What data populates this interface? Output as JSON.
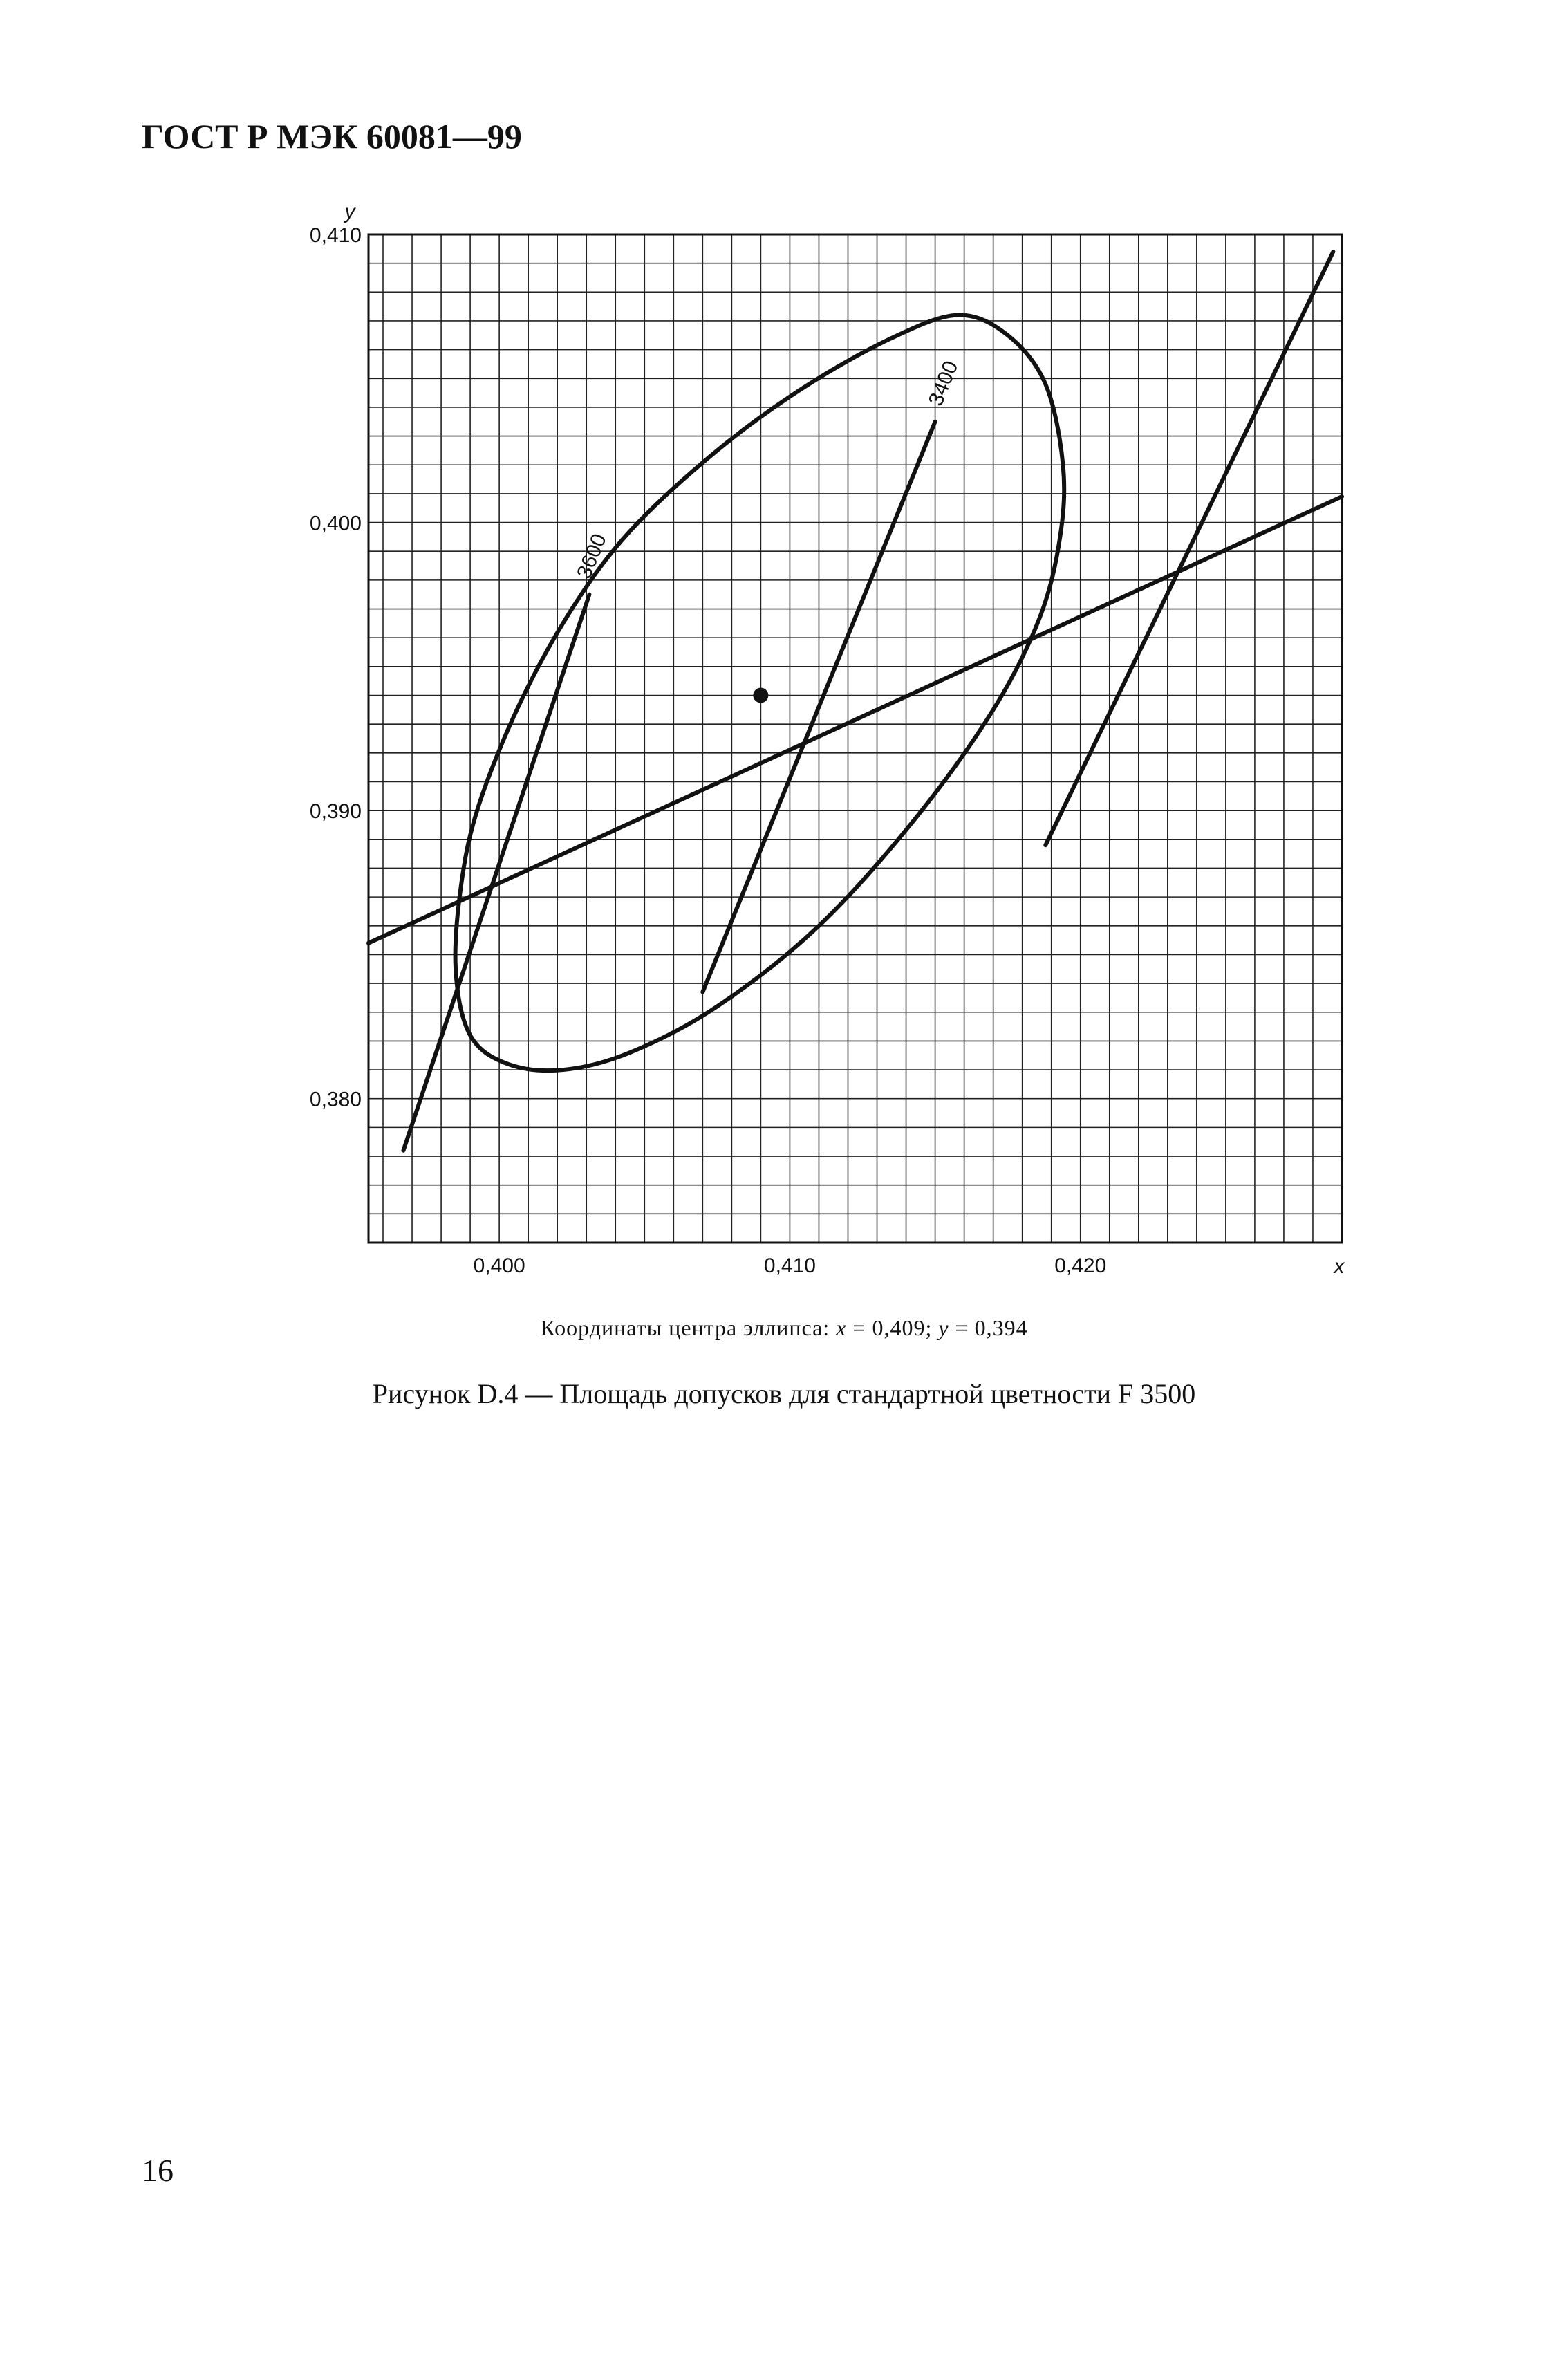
{
  "header": {
    "title": "ГОСТ Р МЭК 60081—99"
  },
  "caption": {
    "coords_label": "Координаты центра эллипса:",
    "x_var": "x",
    "x_value": "= 0,409;",
    "y_var": "y",
    "y_value": "= 0,394",
    "figure_title": "Рисунок D.4 — Площадь допусков для стандартной цветности F 3500"
  },
  "page_number": "16",
  "chart_data": {
    "type": "line",
    "title": "",
    "xlabel": "x",
    "ylabel": "y",
    "xlim": [
      0.3955,
      0.429
    ],
    "ylim": [
      0.375,
      0.41
    ],
    "grid": true,
    "x_ticks": [
      {
        "value": 0.4,
        "label": "0,400"
      },
      {
        "value": 0.41,
        "label": "0,410"
      },
      {
        "value": 0.42,
        "label": "0,420"
      }
    ],
    "y_ticks": [
      {
        "value": 0.41,
        "label": "0,410"
      },
      {
        "value": 0.4,
        "label": "0,400"
      },
      {
        "value": 0.39,
        "label": "0,390"
      },
      {
        "value": 0.38,
        "label": "0,380"
      }
    ],
    "center": {
      "x": 0.409,
      "y": 0.394
    },
    "ellipse": [
      [
        0.4158,
        0.4072
      ],
      [
        0.4175,
        0.4065
      ],
      [
        0.4188,
        0.4048
      ],
      [
        0.4194,
        0.402
      ],
      [
        0.4193,
        0.3995
      ],
      [
        0.4186,
        0.3967
      ],
      [
        0.417,
        0.3935
      ],
      [
        0.4143,
        0.3897
      ],
      [
        0.411,
        0.386
      ],
      [
        0.4075,
        0.3832
      ],
      [
        0.4045,
        0.3816
      ],
      [
        0.4022,
        0.381
      ],
      [
        0.4003,
        0.3812
      ],
      [
        0.399,
        0.3822
      ],
      [
        0.3985,
        0.3845
      ],
      [
        0.3987,
        0.3875
      ],
      [
        0.3993,
        0.3902
      ],
      [
        0.4007,
        0.3937
      ],
      [
        0.4025,
        0.397
      ],
      [
        0.4045,
        0.3997
      ],
      [
        0.4075,
        0.4025
      ],
      [
        0.4105,
        0.4047
      ],
      [
        0.4135,
        0.4064
      ],
      [
        0.4158,
        0.4072
      ]
    ],
    "lines": [
      {
        "from": [
          0.3955,
          0.3854
        ],
        "to": [
          0.429,
          0.4009
        ]
      },
      {
        "from": [
          0.3967,
          0.3782
        ],
        "to": [
          0.4031,
          0.3975
        ]
      },
      {
        "from": [
          0.407,
          0.3837
        ],
        "to": [
          0.415,
          0.4035
        ]
      },
      {
        "from": [
          0.4188,
          0.3888
        ],
        "to": [
          0.4287,
          0.4094
        ]
      }
    ],
    "isotherm_labels": [
      {
        "text": "3600",
        "x": 0.4031,
        "y": 0.398
      },
      {
        "text": "3400",
        "x": 0.4152,
        "y": 0.404
      }
    ]
  }
}
